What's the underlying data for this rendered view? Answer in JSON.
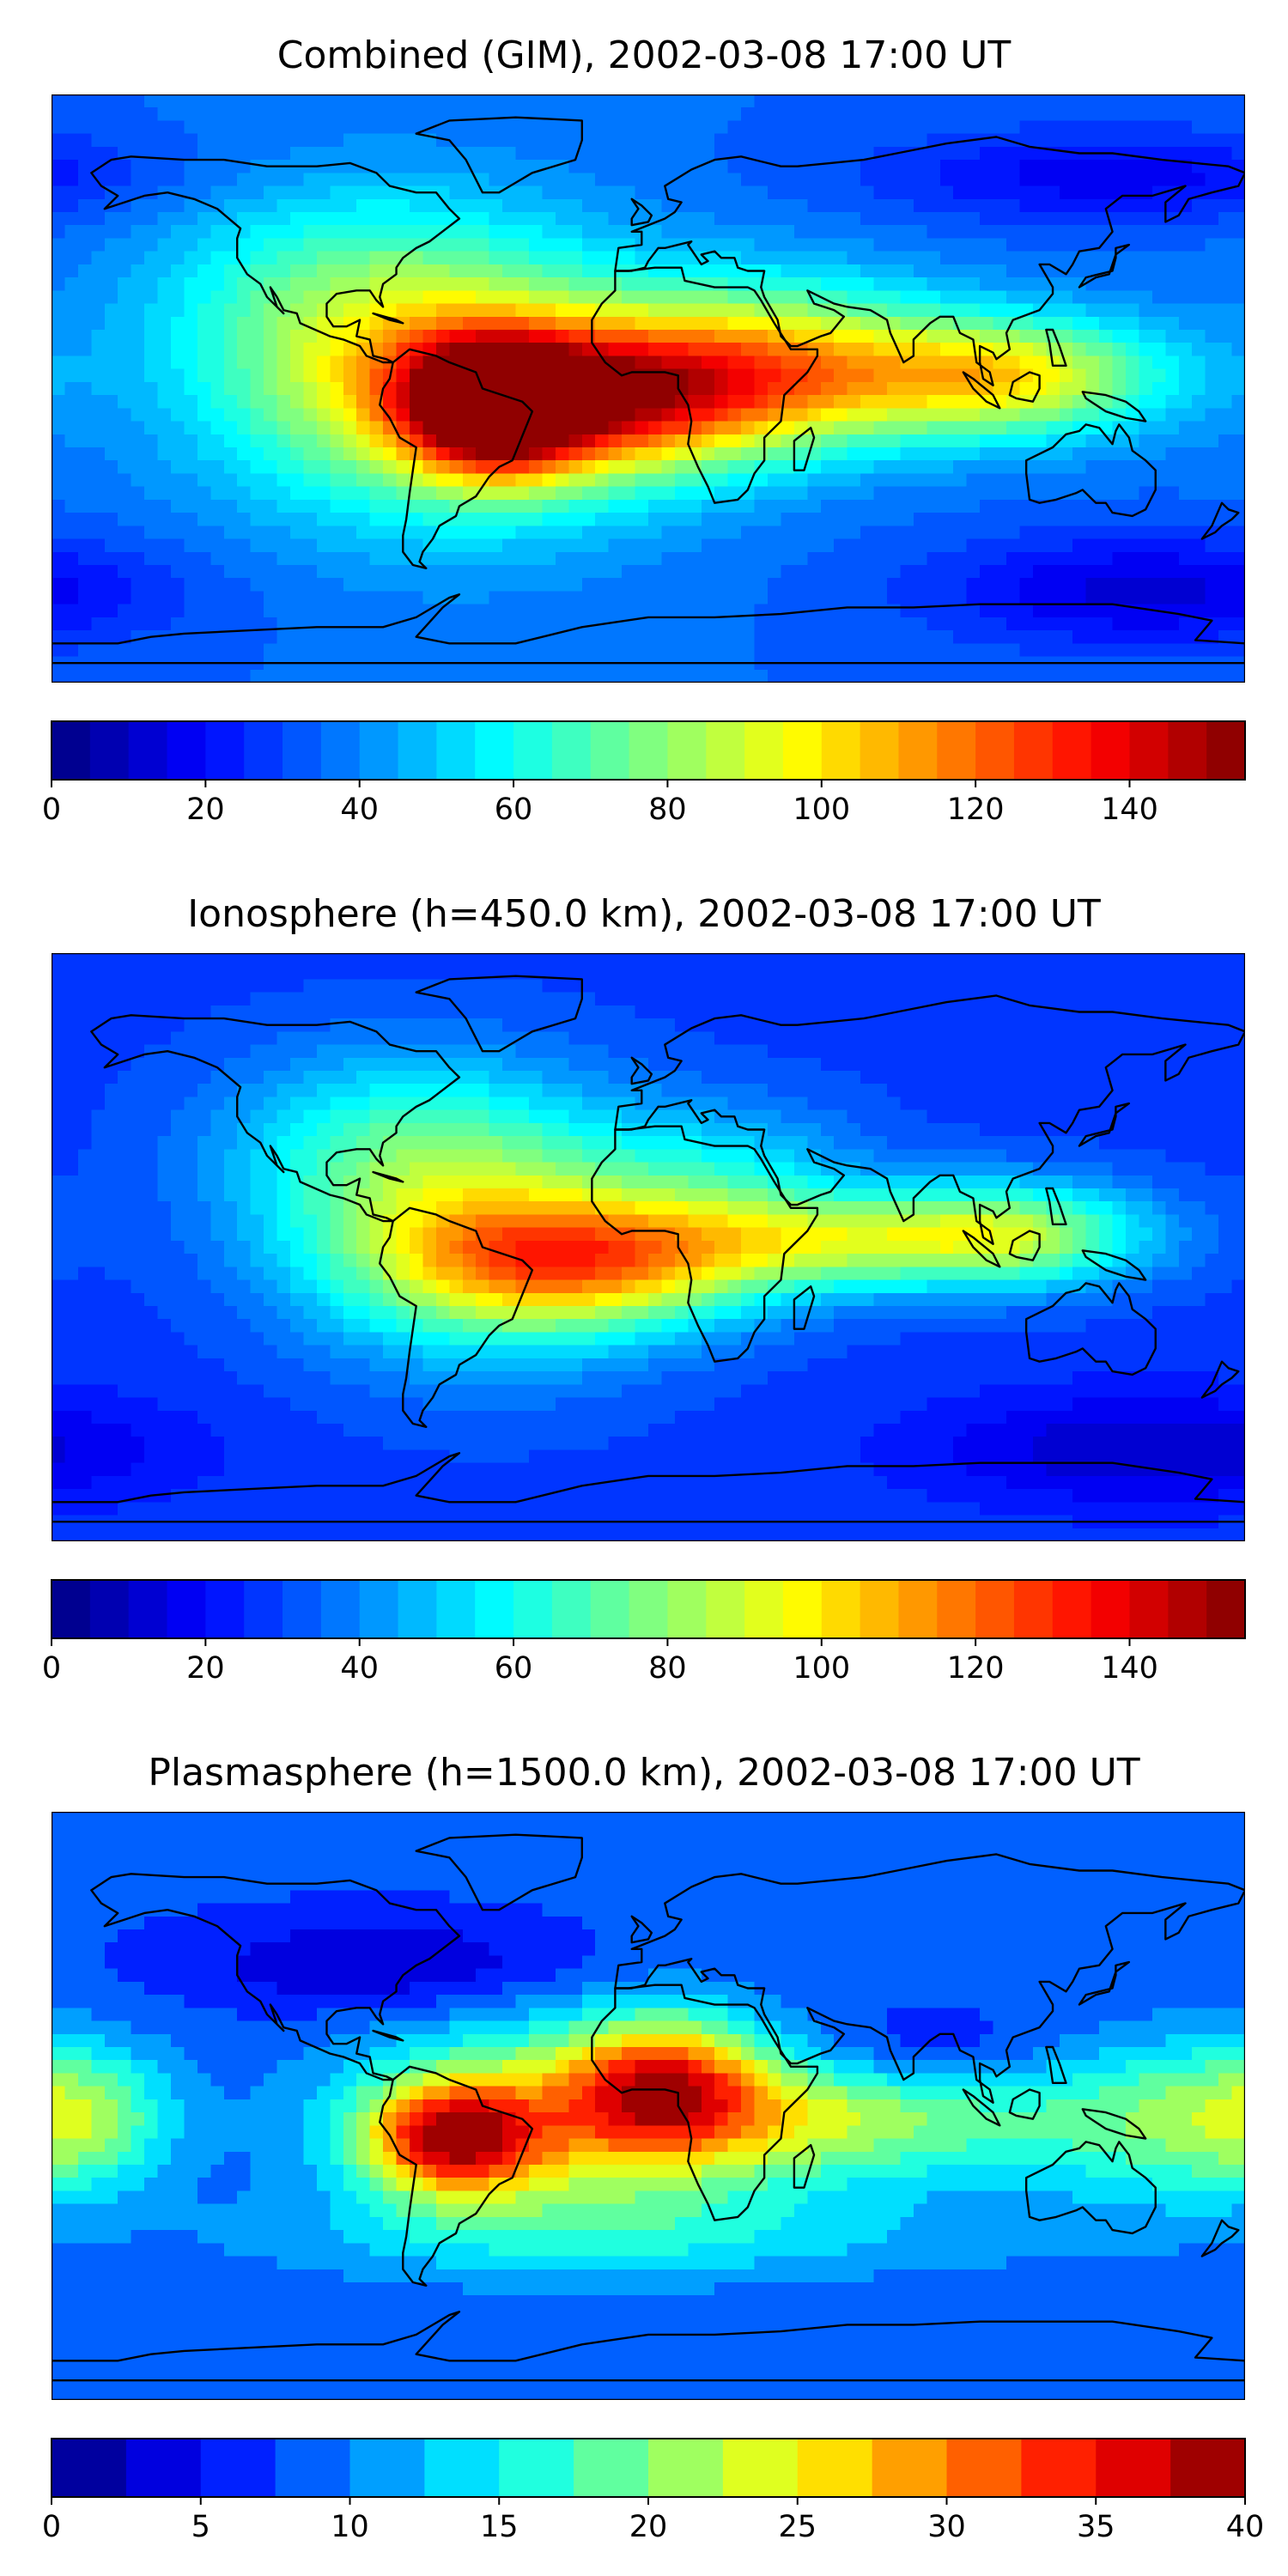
{
  "figure": {
    "colormap": "jet"
  },
  "panels": [
    {
      "title": "Combined (GIM), 2002-03-08 17:00 UT",
      "colorbar": {
        "vmin": 0,
        "vmax": 155,
        "levels": 31,
        "ticks": [
          "0",
          "20",
          "40",
          "60",
          "80",
          "100",
          "120",
          "140"
        ]
      },
      "field": {
        "background": 35,
        "blobs": [
          {
            "lon": -47,
            "lat": -6,
            "amp": 80,
            "sx": 18,
            "sy": 14,
            "note": "max over Brazil"
          },
          {
            "lon": -10,
            "lat": -3,
            "amp": 72,
            "sx": 42,
            "sy": 16
          },
          {
            "lon": -60,
            "lat": 0,
            "amp": 50,
            "sx": 48,
            "sy": 30
          },
          {
            "lon": 60,
            "lat": 3,
            "amp": 45,
            "sx": 55,
            "sy": 14
          },
          {
            "lon": 112,
            "lat": 4,
            "amp": 38,
            "sx": 30,
            "sy": 12
          },
          {
            "lon": -90,
            "lat": 28,
            "amp": 24,
            "sx": 42,
            "sy": 25
          },
          {
            "lon": 40,
            "lat": 20,
            "amp": 22,
            "sx": 35,
            "sy": 15
          },
          {
            "lon": 150,
            "lat": -62,
            "amp": -22,
            "sx": 45,
            "sy": 12
          },
          {
            "lon": 140,
            "lat": 65,
            "amp": -18,
            "sx": 50,
            "sy": 10
          }
        ]
      }
    },
    {
      "title": "Ionosphere  (h=450.0 km), 2002-03-08 17:00 UT",
      "colorbar": {
        "vmin": 0,
        "vmax": 155,
        "levels": 31,
        "ticks": [
          "0",
          "20",
          "40",
          "60",
          "80",
          "100",
          "120",
          "140"
        ]
      },
      "field": {
        "background": 28,
        "blobs": [
          {
            "lon": -18,
            "lat": -5,
            "amp": 62,
            "sx": 40,
            "sy": 14,
            "note": "max over south Atlantic"
          },
          {
            "lon": -50,
            "lat": 5,
            "amp": 45,
            "sx": 40,
            "sy": 28
          },
          {
            "lon": 68,
            "lat": 2,
            "amp": 48,
            "sx": 45,
            "sy": 10
          },
          {
            "lon": 112,
            "lat": 5,
            "amp": 34,
            "sx": 28,
            "sy": 12
          },
          {
            "lon": -80,
            "lat": 30,
            "amp": 25,
            "sx": 38,
            "sy": 22
          },
          {
            "lon": 25,
            "lat": 22,
            "amp": 22,
            "sx": 30,
            "sy": 16
          },
          {
            "lon": 150,
            "lat": -62,
            "amp": -18,
            "sx": 45,
            "sy": 12
          }
        ]
      }
    },
    {
      "title": "Plasmasphere (h=1500.0 km), 2002-03-08 17:00 UT",
      "colorbar": {
        "vmin": 0,
        "vmax": 40,
        "levels": 16,
        "ticks": [
          "0",
          "5",
          "10",
          "15",
          "20",
          "25",
          "30",
          "35",
          "40"
        ]
      },
      "field": {
        "background": 8,
        "blobs": [
          {
            "lon": -60,
            "lat": -10,
            "amp": 22,
            "sx": 18,
            "sy": 12,
            "note": "max over Brazil"
          },
          {
            "lon": 5,
            "lat": 8,
            "amp": 16,
            "sx": 20,
            "sy": 14
          },
          {
            "lon": -25,
            "lat": -5,
            "amp": 15,
            "sx": 45,
            "sy": 22
          },
          {
            "lon": 60,
            "lat": -3,
            "amp": 13,
            "sx": 50,
            "sy": 14
          },
          {
            "lon": -170,
            "lat": -3,
            "amp": 9,
            "sx": 18,
            "sy": 15
          },
          {
            "lon": 160,
            "lat": -5,
            "amp": 10,
            "sx": 30,
            "sy": 18
          },
          {
            "lon": -80,
            "lat": 43,
            "amp": -6,
            "sx": 40,
            "sy": 10
          },
          {
            "lon": 80,
            "lat": 15,
            "amp": -5,
            "sx": 30,
            "sy": 10
          },
          {
            "lon": 0,
            "lat": -40,
            "amp": 5,
            "sx": 90,
            "sy": 10
          }
        ]
      }
    }
  ]
}
